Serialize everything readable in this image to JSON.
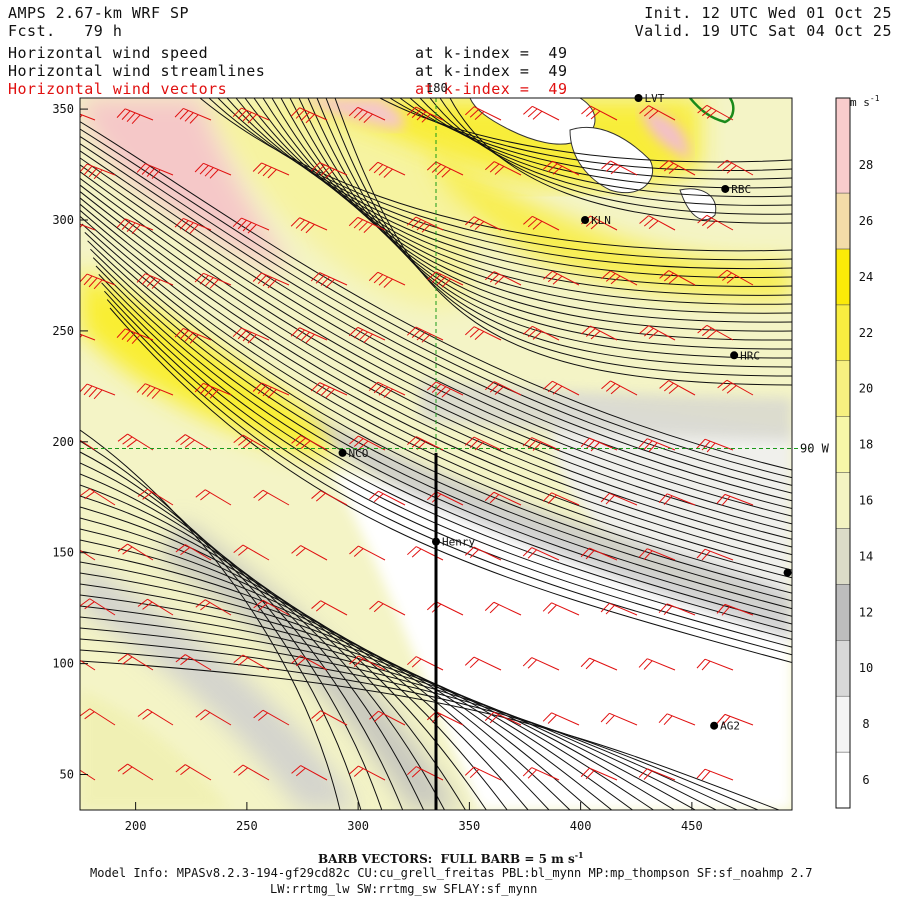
{
  "header": {
    "model": "AMPS 2.67-km WRF SP",
    "forecast": "Fcst.   79 h",
    "init": "Init. 12 UTC Wed 01 Oct 25",
    "valid": "Valid. 19 UTC Sat 04 Oct 25"
  },
  "layers": [
    {
      "label": "Horizontal wind speed",
      "level": "at k-index =  49"
    },
    {
      "label": "Horizontal wind streamlines",
      "level": "at k-index =  49"
    },
    {
      "label": "Horizontal wind vectors",
      "level": "at k-index =  49"
    }
  ],
  "map": {
    "x_ticks": [
      "200",
      "250",
      "300",
      "350",
      "400",
      "450"
    ],
    "y_ticks": [
      "50",
      "100",
      "150",
      "200",
      "250",
      "300",
      "350"
    ],
    "x_range": [
      175,
      495
    ],
    "y_range": [
      34,
      355
    ],
    "meridian_label": "180",
    "parallel_label": "90 W",
    "stations": [
      {
        "name": "LVT",
        "x": 426,
        "y": 355
      },
      {
        "name": "RBC",
        "x": 465,
        "y": 314
      },
      {
        "name": "KLN",
        "x": 402,
        "y": 300
      },
      {
        "name": "HRC",
        "x": 469,
        "y": 239
      },
      {
        "name": "NCO",
        "x": 293,
        "y": 195
      },
      {
        "name": "Henry",
        "x": 335,
        "y": 155
      },
      {
        "name": "",
        "x": 493,
        "y": 141
      },
      {
        "name": "AG2",
        "x": 460,
        "y": 72
      }
    ],
    "vertical_line_x": 335,
    "vertical_line_y": [
      34,
      195
    ]
  },
  "colorbar": {
    "unit": "m s",
    "unit_exp": "-1",
    "levels": [
      6,
      8,
      10,
      12,
      14,
      16,
      18,
      20,
      22,
      24,
      26,
      28
    ],
    "colors": [
      "#ffffff",
      "#f5f5f5",
      "#d8d8d8",
      "#bdbdbd",
      "#dcdcc8",
      "#f3f3c2",
      "#f7f7a8",
      "#f7f080",
      "#f9ee40",
      "#fbea08",
      "#f3dca8",
      "#f8cccc"
    ]
  },
  "footer": {
    "barb_prefix": "BARB VECTORS:  FULL BARB = 5 m s",
    "barb_exp": "-1",
    "model_info_1": "Model Info: MPASv8.2.3-194-gf29cd82c CU:cu_grell_freitas PBL:bl_mynn MP:mp_thompson SF:sf_noahmp 2.7",
    "model_info_2": "LW:rrtmg_lw SW:rrtmg_sw SFLAY:sf_mynn"
  }
}
